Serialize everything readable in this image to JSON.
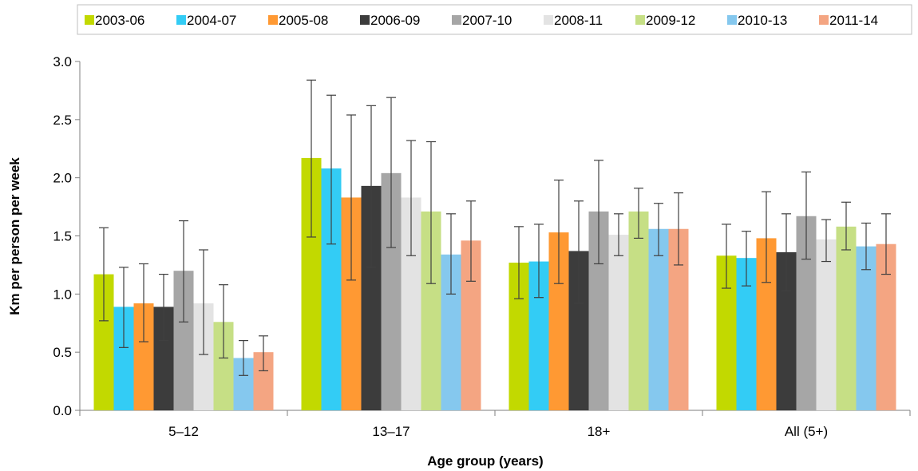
{
  "chart_data": {
    "type": "bar",
    "xlabel": "Age group (years)",
    "ylabel": "Km per person per week",
    "ylim": [
      0,
      3.0
    ],
    "yticks": [
      "0.0",
      "0.5",
      "1.0",
      "1.5",
      "2.0",
      "2.5",
      "3.0"
    ],
    "grid": false,
    "legend_position": "top",
    "categories": [
      "5–12",
      "13–17",
      "18+",
      "All (5+)"
    ],
    "series": [
      {
        "name": "2003-06",
        "color": "#c2d900",
        "values": [
          1.17,
          2.17,
          1.27,
          1.33
        ],
        "error_low": [
          0.77,
          1.49,
          0.96,
          1.05
        ],
        "error_high": [
          1.57,
          2.84,
          1.58,
          1.6
        ]
      },
      {
        "name": "2004-07",
        "color": "#33ccf5",
        "values": [
          0.89,
          2.08,
          1.28,
          1.31
        ],
        "error_low": [
          0.54,
          1.43,
          0.97,
          1.07
        ],
        "error_high": [
          1.23,
          2.71,
          1.6,
          1.54
        ]
      },
      {
        "name": "2005-08",
        "color": "#ff9933",
        "values": [
          0.92,
          1.83,
          1.53,
          1.48
        ],
        "error_low": [
          0.59,
          1.12,
          1.09,
          1.1
        ],
        "error_high": [
          1.26,
          2.54,
          1.98,
          1.88
        ]
      },
      {
        "name": "2006-09",
        "color": "#3c3c3c",
        "values": [
          0.89,
          1.93,
          1.37,
          1.36
        ],
        "error_low": [
          0.6,
          1.23,
          0.92,
          1.03
        ],
        "error_high": [
          1.17,
          2.62,
          1.8,
          1.69
        ]
      },
      {
        "name": "2007-10",
        "color": "#a6a6a6",
        "values": [
          1.2,
          2.04,
          1.71,
          1.67
        ],
        "error_low": [
          0.76,
          1.4,
          1.26,
          1.3
        ],
        "error_high": [
          1.63,
          2.69,
          2.15,
          2.05
        ]
      },
      {
        "name": "2008-11",
        "color": "#e3e3e3",
        "values": [
          0.92,
          1.83,
          1.51,
          1.47
        ],
        "error_low": [
          0.48,
          1.33,
          1.33,
          1.28
        ],
        "error_high": [
          1.38,
          2.32,
          1.69,
          1.64
        ]
      },
      {
        "name": "2009-12",
        "color": "#c6df85",
        "values": [
          0.76,
          1.71,
          1.71,
          1.58
        ],
        "error_low": [
          0.45,
          1.09,
          1.48,
          1.38
        ],
        "error_high": [
          1.08,
          2.31,
          1.91,
          1.79
        ]
      },
      {
        "name": "2010-13",
        "color": "#85c8ee",
        "values": [
          0.45,
          1.34,
          1.56,
          1.41
        ],
        "error_low": [
          0.3,
          1.0,
          1.33,
          1.21
        ],
        "error_high": [
          0.6,
          1.69,
          1.78,
          1.61
        ]
      },
      {
        "name": "2011-14",
        "color": "#f4a582",
        "values": [
          0.5,
          1.46,
          1.56,
          1.43
        ],
        "error_low": [
          0.34,
          1.11,
          1.25,
          1.17
        ],
        "error_high": [
          0.64,
          1.8,
          1.87,
          1.69
        ]
      }
    ]
  }
}
